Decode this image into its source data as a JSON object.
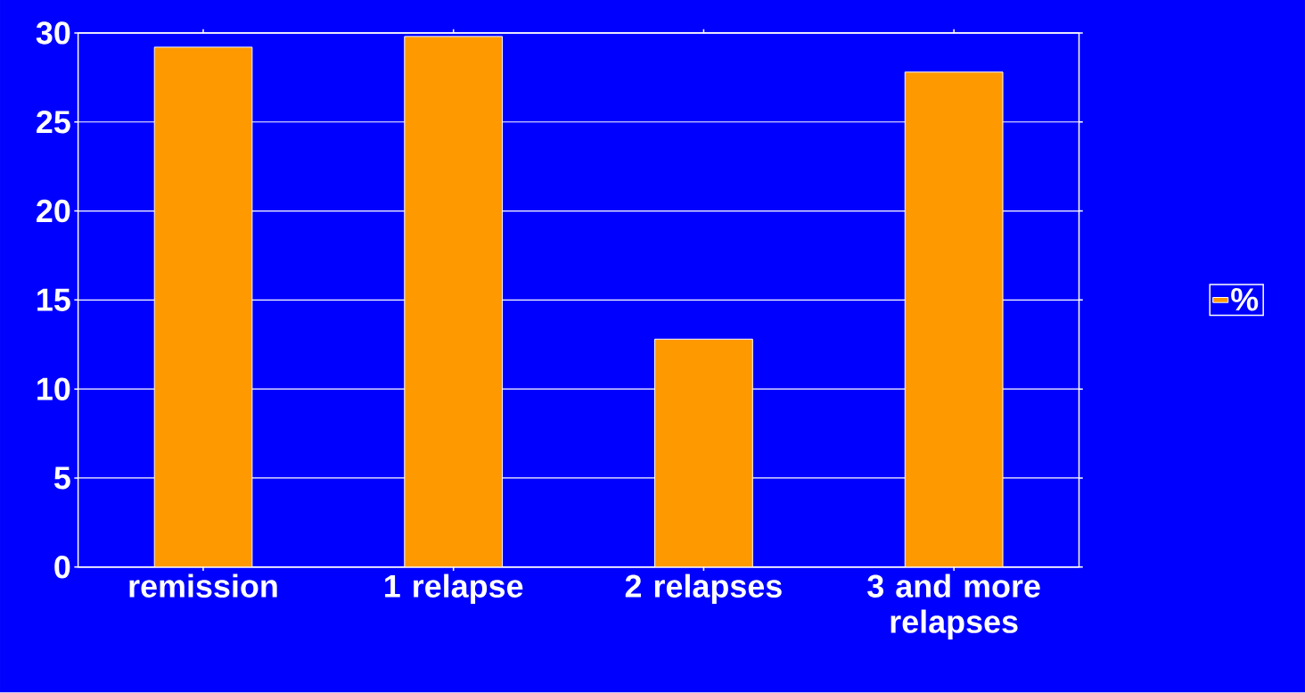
{
  "chart_data": {
    "type": "bar",
    "categories": [
      "remission",
      "1 relapse",
      "2 relapses",
      "3 and more relapses"
    ],
    "series": [
      {
        "name": "%",
        "color": "#ff9900",
        "values": [
          29.2,
          29.8,
          12.8,
          27.8
        ]
      }
    ],
    "ylim": [
      0,
      30
    ],
    "yticks": [
      0,
      5,
      10,
      15,
      20,
      25,
      30
    ],
    "grid": "y",
    "legend": "right"
  }
}
